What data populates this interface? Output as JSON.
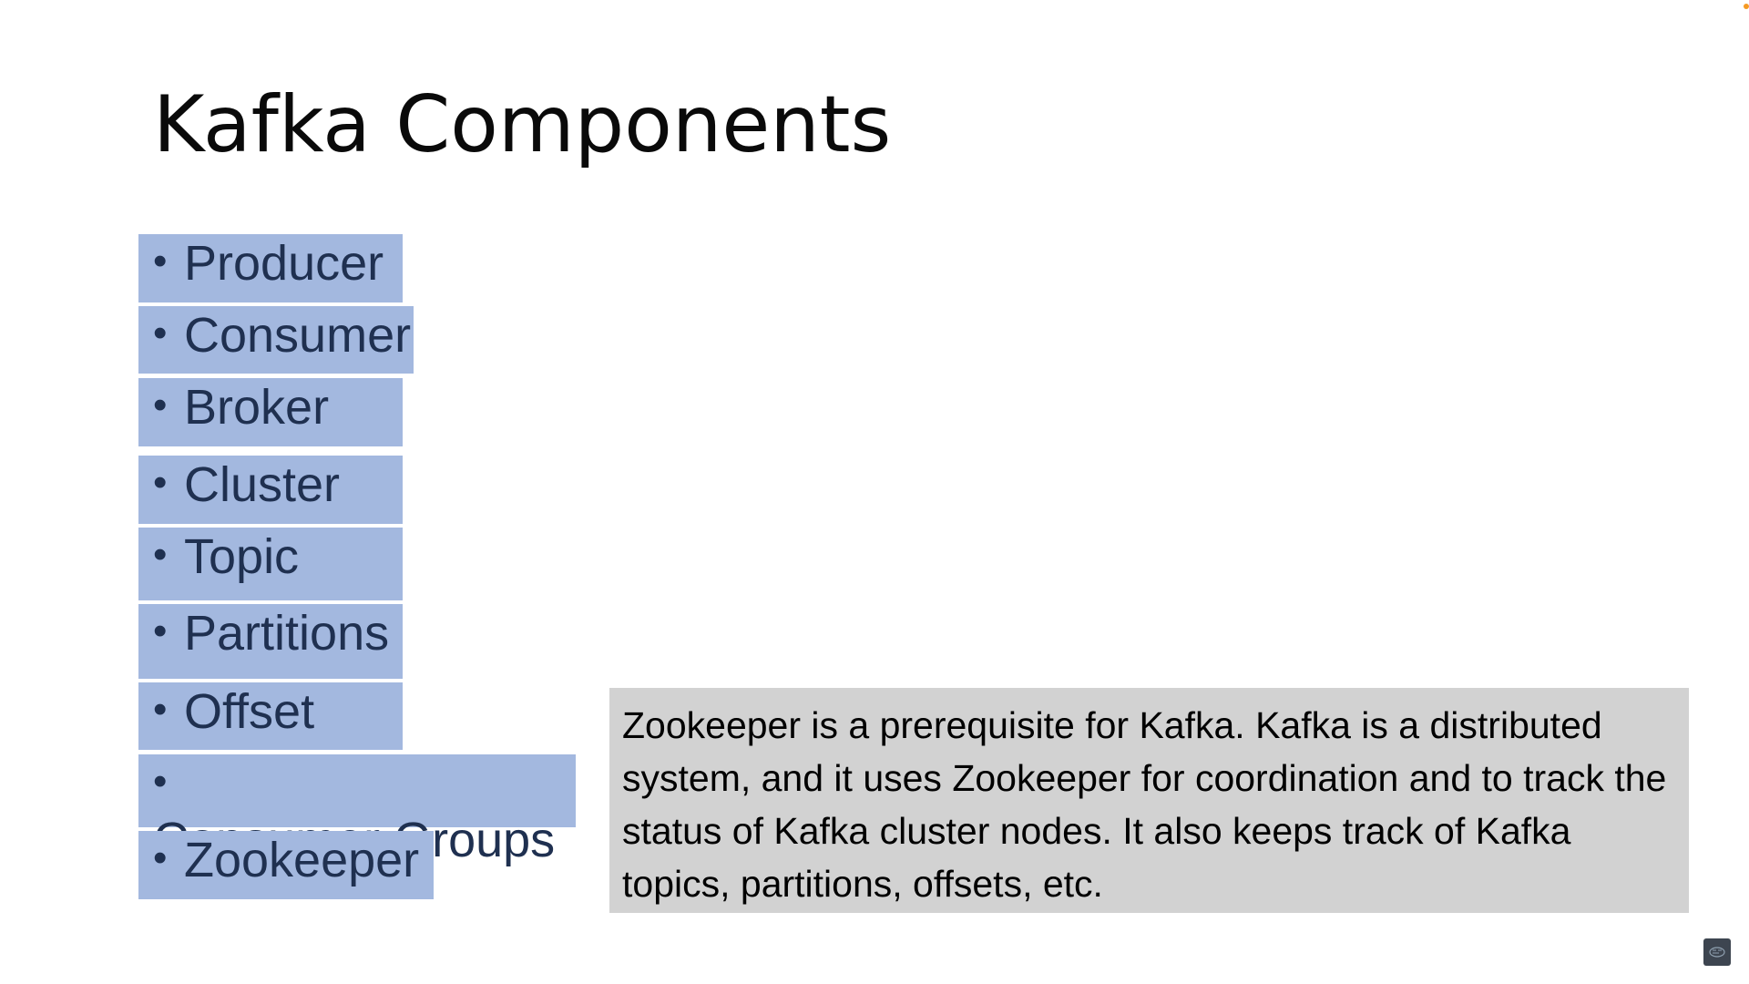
{
  "slide": {
    "title": "Kafka Components",
    "bullet_symbol": "•",
    "bullets": [
      "Producer",
      "Consumer",
      "Broker",
      "Cluster",
      "Topic",
      "Partitions",
      "Offset",
      "Consumer Groups",
      "Zookeeper"
    ],
    "note": "Zookeeper is a prerequisite for Kafka. Kafka is a distributed system, and it uses Zookeeper for coordination and to track the status of Kafka cluster nodes. It also keeps track of Kafka topics, partitions, offsets, etc."
  },
  "colors": {
    "bullet_background": "#a3b8df",
    "bullet_text": "#1f3050",
    "note_background": "#d2d2d2"
  },
  "icons": {
    "corner": "orange-dot-icon",
    "controls": "player-controls-icon"
  }
}
